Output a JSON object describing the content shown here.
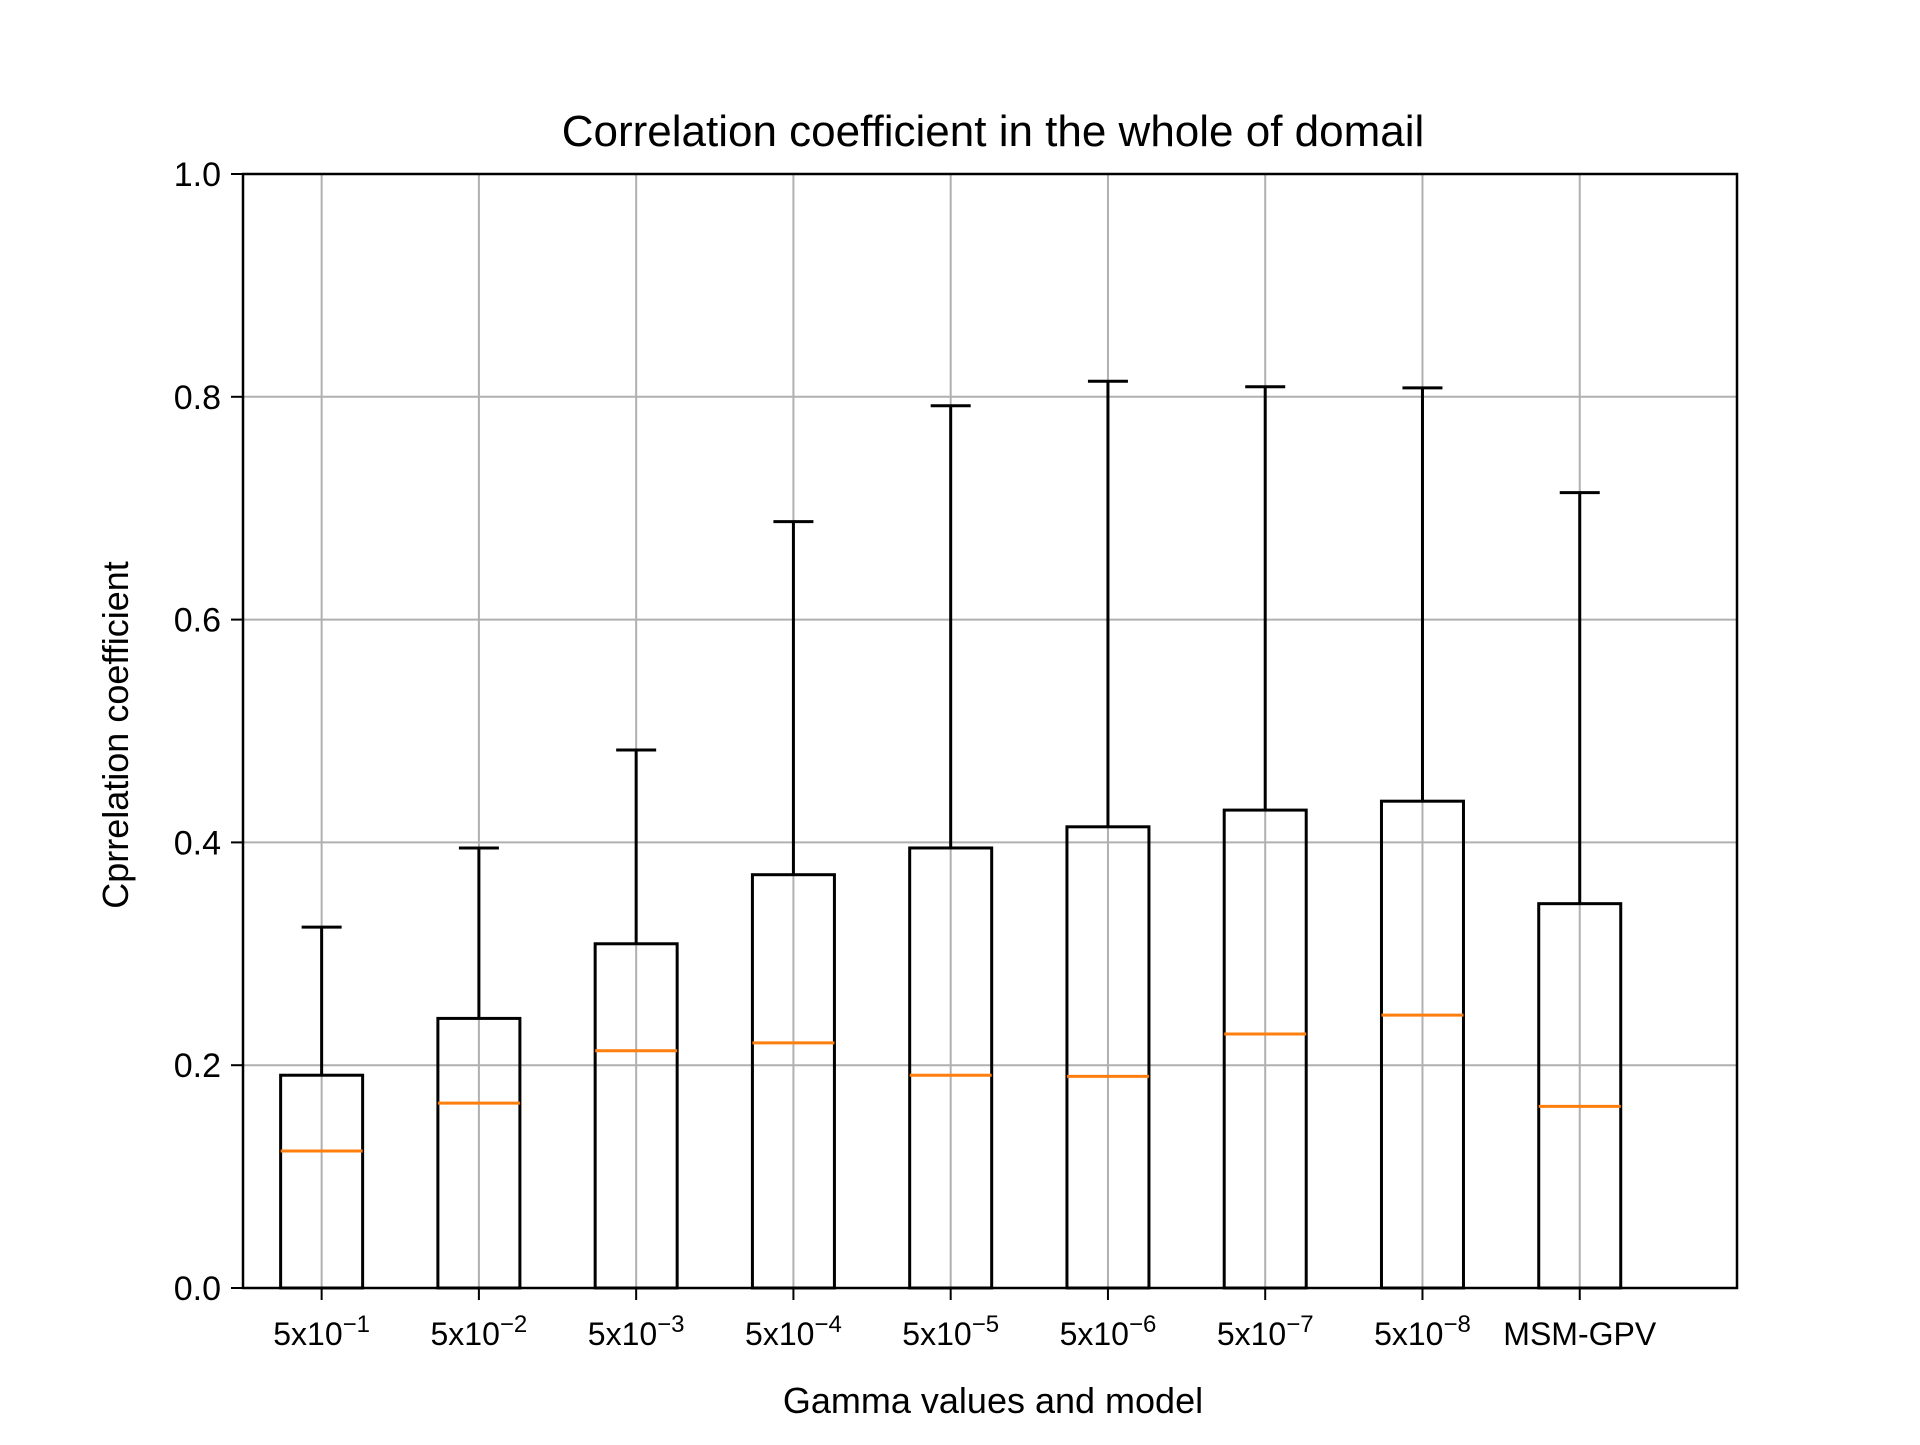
{
  "chart_data": {
    "type": "boxplot",
    "title": "Correlation coefficient in the whole of domail",
    "xlabel": "Gamma values and model",
    "ylabel": "Cprrelation coefficient",
    "ylim": [
      0.0,
      1.0
    ],
    "yticks": [
      "0.0",
      "0.2",
      "0.4",
      "0.6",
      "0.8",
      "1.0"
    ],
    "grid": true,
    "categories": [
      {
        "base": "5x10",
        "exp": "−1"
      },
      {
        "base": "5x10",
        "exp": "−2"
      },
      {
        "base": "5x10",
        "exp": "−3"
      },
      {
        "base": "5x10",
        "exp": "−4"
      },
      {
        "base": "5x10",
        "exp": "−5"
      },
      {
        "base": "5x10",
        "exp": "−6"
      },
      {
        "base": "5x10",
        "exp": "−7"
      },
      {
        "base": "5x10",
        "exp": "−8"
      },
      {
        "base": "MSM-GPV",
        "exp": ""
      }
    ],
    "boxes": [
      {
        "low": 0.0,
        "q1": 0.0,
        "median": 0.123,
        "q3": 0.191,
        "whisker_high": 0.324
      },
      {
        "low": 0.0,
        "q1": 0.0,
        "median": 0.166,
        "q3": 0.242,
        "whisker_high": 0.395
      },
      {
        "low": 0.0,
        "q1": 0.0,
        "median": 0.213,
        "q3": 0.309,
        "whisker_high": 0.483
      },
      {
        "low": 0.0,
        "q1": 0.0,
        "median": 0.22,
        "q3": 0.371,
        "whisker_high": 0.688
      },
      {
        "low": 0.0,
        "q1": 0.0,
        "median": 0.191,
        "q3": 0.395,
        "whisker_high": 0.792
      },
      {
        "low": 0.0,
        "q1": 0.0,
        "median": 0.19,
        "q3": 0.414,
        "whisker_high": 0.814
      },
      {
        "low": 0.0,
        "q1": 0.0,
        "median": 0.228,
        "q3": 0.429,
        "whisker_high": 0.809
      },
      {
        "low": 0.0,
        "q1": 0.0,
        "median": 0.245,
        "q3": 0.437,
        "whisker_high": 0.808
      },
      {
        "low": 0.0,
        "q1": 0.0,
        "median": 0.163,
        "q3": 0.345,
        "whisker_high": 0.714
      }
    ],
    "colors": {
      "box": "#000000",
      "median": "#ff7f0e",
      "grid": "#b0b0b0",
      "axis": "#000000"
    }
  }
}
